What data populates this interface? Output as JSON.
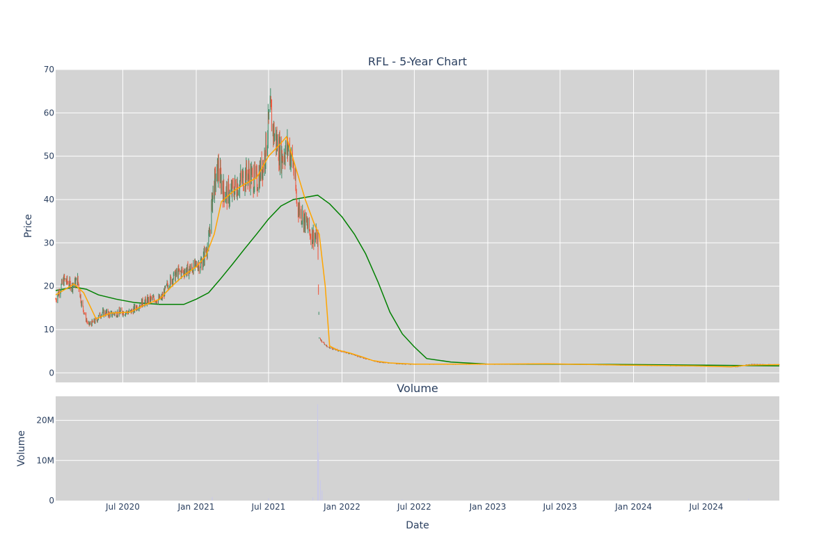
{
  "figure": {
    "title": "RFL - 5-Year Chart",
    "colors": {
      "background": "#ffffff",
      "plot_bg": "#d3d3d3",
      "grid": "#ffffff",
      "text": "#2a3f5f",
      "candle_up": "#3d8f68",
      "candle_down": "#ef553b",
      "ma_fast": "#ffa500",
      "ma_slow": "#008000",
      "volume_bar": "#c9c9e8"
    }
  },
  "chart_data": [
    {
      "type": "candlestick",
      "title": "RFL - 5-Year Chart",
      "xlabel": "",
      "ylabel": "Price",
      "ylim": [
        -2.2,
        70
      ],
      "y_ticks": [
        0,
        10,
        20,
        30,
        40,
        50,
        60,
        70
      ],
      "x_ticks": [
        "Jul 2020",
        "Jan 2021",
        "Jul 2021",
        "Jan 2022",
        "Jul 2022",
        "Jan 2023",
        "Jul 2023",
        "Jan 2024",
        "Jul 2024"
      ],
      "x_tick_dates": [
        "2020-07-01",
        "2021-01-01",
        "2021-07-01",
        "2022-01-01",
        "2022-07-01",
        "2023-01-01",
        "2023-07-01",
        "2024-01-01",
        "2024-07-01"
      ],
      "x_range": [
        "2020-01-15",
        "2024-12-31"
      ],
      "grid": true,
      "price_path": [
        [
          "2020-01-15",
          17
        ],
        [
          "2020-02-05",
          21.5
        ],
        [
          "2020-02-25",
          20
        ],
        [
          "2020-03-10",
          21.5
        ],
        [
          "2020-03-20",
          16
        ],
        [
          "2020-04-05",
          11
        ],
        [
          "2020-04-25",
          12
        ],
        [
          "2020-05-10",
          14
        ],
        [
          "2020-06-01",
          13.5
        ],
        [
          "2020-06-25",
          14
        ],
        [
          "2020-07-20",
          14
        ],
        [
          "2020-08-15",
          16
        ],
        [
          "2020-09-10",
          17
        ],
        [
          "2020-10-05",
          17
        ],
        [
          "2020-10-25",
          21
        ],
        [
          "2020-11-15",
          23
        ],
        [
          "2020-12-20",
          24
        ],
        [
          "2021-01-15",
          25.5
        ],
        [
          "2021-02-01",
          30
        ],
        [
          "2021-02-12",
          42
        ],
        [
          "2021-02-25",
          47
        ],
        [
          "2021-03-10",
          42
        ],
        [
          "2021-03-25",
          41
        ],
        [
          "2021-04-20",
          44
        ],
        [
          "2021-05-10",
          46
        ],
        [
          "2021-06-01",
          44
        ],
        [
          "2021-06-20",
          49
        ],
        [
          "2021-07-05",
          60
        ],
        [
          "2021-07-15",
          55
        ],
        [
          "2021-08-01",
          50
        ],
        [
          "2021-08-20",
          52
        ],
        [
          "2021-09-01",
          48
        ],
        [
          "2021-09-10",
          39
        ],
        [
          "2021-09-25",
          36
        ],
        [
          "2021-10-15",
          32
        ],
        [
          "2021-11-01",
          31
        ],
        [
          "2021-11-05",
          8
        ],
        [
          "2021-11-25",
          6
        ],
        [
          "2021-12-20",
          5.2
        ],
        [
          "2022-01-20",
          4.5
        ],
        [
          "2022-02-20",
          3.5
        ],
        [
          "2022-04-01",
          2.5
        ],
        [
          "2022-06-01",
          2
        ],
        [
          "2022-09-01",
          2
        ],
        [
          "2023-01-01",
          2
        ],
        [
          "2023-06-01",
          2.1
        ],
        [
          "2023-12-01",
          1.8
        ],
        [
          "2024-06-01",
          1.6
        ],
        [
          "2024-09-15",
          1.4
        ],
        [
          "2024-10-15",
          2
        ],
        [
          "2024-12-31",
          1.9
        ]
      ],
      "series": [
        {
          "kind": "moving_average_fast",
          "points": [
            [
              "2020-01-15",
              18
            ],
            [
              "2020-03-01",
              20.5
            ],
            [
              "2020-03-25",
              18.5
            ],
            [
              "2020-04-25",
              12.5
            ],
            [
              "2020-06-01",
              13.8
            ],
            [
              "2020-07-20",
              14
            ],
            [
              "2020-08-20",
              15.5
            ],
            [
              "2020-10-01",
              17
            ],
            [
              "2020-11-01",
              20
            ],
            [
              "2020-12-01",
              22.5
            ],
            [
              "2021-01-01",
              24.5
            ],
            [
              "2021-01-25",
              27
            ],
            [
              "2021-02-15",
              32
            ],
            [
              "2021-03-05",
              39.5
            ],
            [
              "2021-04-05",
              42
            ],
            [
              "2021-05-01",
              43.5
            ],
            [
              "2021-06-01",
              45
            ],
            [
              "2021-07-01",
              50
            ],
            [
              "2021-08-01",
              53
            ],
            [
              "2021-08-15",
              54.5
            ],
            [
              "2021-09-05",
              48
            ],
            [
              "2021-10-01",
              40
            ],
            [
              "2021-10-25",
              34
            ],
            [
              "2021-11-05",
              32
            ],
            [
              "2021-11-20",
              20
            ],
            [
              "2021-12-01",
              6.2
            ],
            [
              "2021-12-20",
              5.3
            ],
            [
              "2022-01-20",
              4.6
            ],
            [
              "2022-02-20",
              3.7
            ],
            [
              "2022-03-20",
              2.8
            ],
            [
              "2022-05-01",
              2.3
            ],
            [
              "2022-07-01",
              2
            ],
            [
              "2023-01-01",
              2
            ],
            [
              "2023-06-01",
              2.1
            ],
            [
              "2023-12-01",
              1.8
            ],
            [
              "2024-06-01",
              1.6
            ],
            [
              "2024-09-01",
              1.4
            ],
            [
              "2024-10-15",
              1.8
            ],
            [
              "2024-12-31",
              1.9
            ]
          ]
        },
        {
          "kind": "moving_average_slow",
          "points": [
            [
              "2020-01-15",
              19
            ],
            [
              "2020-03-01",
              19.8
            ],
            [
              "2020-04-01",
              19.3
            ],
            [
              "2020-05-01",
              18
            ],
            [
              "2020-06-15",
              17
            ],
            [
              "2020-08-01",
              16.2
            ],
            [
              "2020-10-01",
              15.8
            ],
            [
              "2020-12-01",
              15.8
            ],
            [
              "2021-01-01",
              17
            ],
            [
              "2021-02-01",
              18.5
            ],
            [
              "2021-03-01",
              21.5
            ],
            [
              "2021-04-01",
              25
            ],
            [
              "2021-05-01",
              28.5
            ],
            [
              "2021-06-01",
              32
            ],
            [
              "2021-07-01",
              35.5
            ],
            [
              "2021-08-01",
              38.5
            ],
            [
              "2021-09-01",
              40
            ],
            [
              "2021-10-01",
              40.5
            ],
            [
              "2021-11-01",
              41
            ],
            [
              "2021-12-01",
              39
            ],
            [
              "2022-01-01",
              36
            ],
            [
              "2022-02-01",
              32
            ],
            [
              "2022-03-01",
              27.5
            ],
            [
              "2022-04-01",
              21
            ],
            [
              "2022-05-01",
              14
            ],
            [
              "2022-06-01",
              9
            ],
            [
              "2022-07-01",
              6
            ],
            [
              "2022-08-01",
              3.3
            ],
            [
              "2022-10-01",
              2.5
            ],
            [
              "2023-01-01",
              2
            ],
            [
              "2023-06-01",
              2
            ],
            [
              "2024-01-01",
              1.9
            ],
            [
              "2024-06-01",
              1.8
            ],
            [
              "2024-12-31",
              1.6
            ]
          ]
        }
      ]
    },
    {
      "type": "bar",
      "title": "Volume",
      "xlabel": "Date",
      "ylabel": "Volume",
      "ylim": [
        0,
        26000000
      ],
      "y_ticks": [
        0,
        10000000,
        20000000
      ],
      "y_tick_labels": [
        "0",
        "10M",
        "20M"
      ],
      "grid": true,
      "volume": [
        [
          "2021-11-01",
          24000000
        ],
        [
          "2021-11-03",
          12000000
        ],
        [
          "2021-11-08",
          5000000
        ],
        [
          "2021-11-12",
          2500000
        ],
        [
          "2021-10-20",
          800000
        ],
        [
          "2021-07-01",
          600000
        ],
        [
          "2021-02-10",
          900000
        ],
        [
          "2022-06-01",
          300000
        ],
        [
          "2024-10-15",
          500000
        ]
      ]
    }
  ]
}
